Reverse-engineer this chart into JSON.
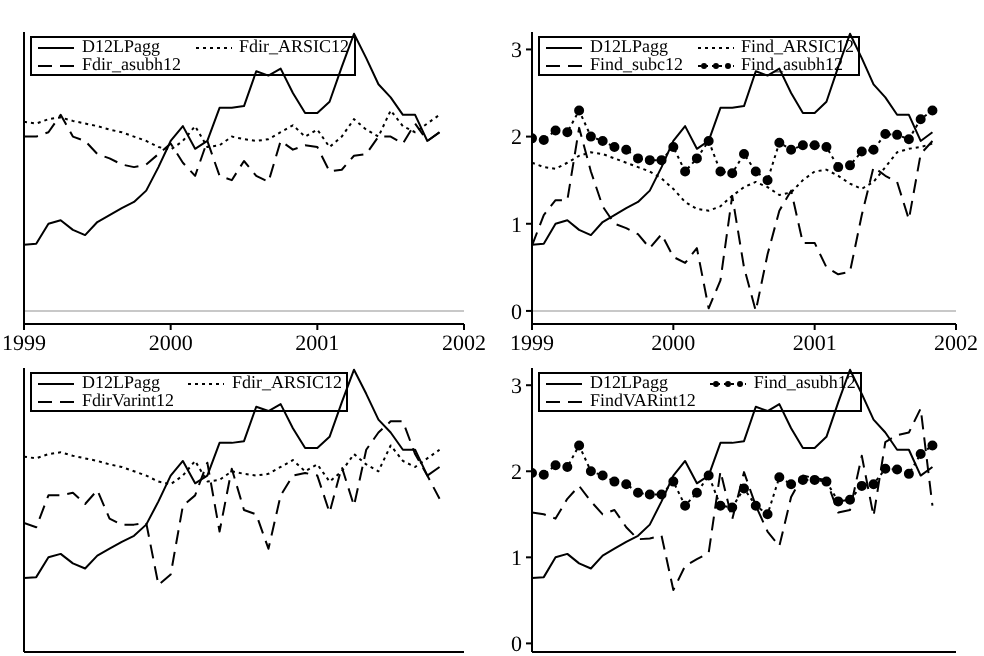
{
  "chart_data": [
    {
      "type": "line",
      "x": [
        "1999-01",
        "1999-02",
        "1999-03",
        "1999-04",
        "1999-05",
        "1999-06",
        "1999-07",
        "1999-08",
        "1999-09",
        "1999-10",
        "1999-11",
        "1999-12",
        "2000-01",
        "2000-02",
        "2000-03",
        "2000-04",
        "2000-05",
        "2000-06",
        "2000-07",
        "2000-08",
        "2000-09",
        "2000-10",
        "2000-11",
        "2000-12",
        "2001-01",
        "2001-02",
        "2001-03",
        "2001-04",
        "2001-05",
        "2001-06",
        "2001-07",
        "2001-08",
        "2001-09",
        "2001-10",
        "2001-11"
      ],
      "xlim": [
        "1999",
        "2002"
      ],
      "xticks": [
        "1999",
        "2000",
        "2001",
        "2002"
      ],
      "ylim": [
        -0.15,
        3.2
      ],
      "yticks": [
        0,
        1,
        2,
        3
      ],
      "tick_labels": "x",
      "legend": "top left",
      "ref_lines": [
        {
          "axis": "y",
          "value": 0,
          "color": "#c8c8c8"
        }
      ],
      "series": [
        {
          "name": "D12LPagg",
          "color": "#000000",
          "line_style": "solid",
          "marker": "none",
          "values": [
            0.76,
            0.77,
            1.0,
            1.04,
            0.93,
            0.87,
            1.02,
            1.1,
            1.18,
            1.25,
            1.38,
            1.65,
            1.95,
            2.12,
            1.86,
            1.95,
            2.33,
            2.33,
            2.35,
            2.75,
            2.7,
            2.78,
            2.5,
            2.27,
            2.27,
            2.4,
            2.8,
            3.18,
            2.9,
            2.6,
            2.45,
            2.25,
            2.25,
            1.95,
            2.05
          ]
        },
        {
          "name": "Fdir_ARSIC12",
          "color": "#000000",
          "line_style": "dotted",
          "marker": "none",
          "values": [
            2.17,
            2.15,
            2.2,
            2.22,
            2.18,
            2.15,
            2.12,
            2.08,
            2.05,
            2.0,
            1.95,
            1.88,
            1.85,
            1.95,
            2.12,
            1.88,
            1.9,
            2.0,
            1.97,
            1.95,
            1.97,
            2.05,
            2.13,
            2.0,
            2.08,
            1.88,
            2.0,
            2.2,
            2.08,
            2.0,
            2.3,
            2.12,
            2.05,
            2.15,
            2.25
          ]
        },
        {
          "name": "Fdir_asubh12",
          "color": "#000000",
          "line_style": "dashed",
          "marker": "none",
          "values": [
            2.0,
            2.0,
            2.05,
            2.25,
            2.0,
            1.95,
            1.8,
            1.75,
            1.68,
            1.65,
            1.68,
            1.8,
            1.92,
            1.7,
            1.55,
            1.95,
            1.55,
            1.5,
            1.72,
            1.55,
            1.48,
            1.95,
            1.85,
            1.9,
            1.88,
            1.6,
            1.62,
            1.78,
            1.8,
            2.0,
            2.0,
            1.92,
            2.15,
            1.95,
            2.05
          ]
        }
      ]
    },
    {
      "type": "line",
      "x": [
        "1999-01",
        "1999-02",
        "1999-03",
        "1999-04",
        "1999-05",
        "1999-06",
        "1999-07",
        "1999-08",
        "1999-09",
        "1999-10",
        "1999-11",
        "1999-12",
        "2000-01",
        "2000-02",
        "2000-03",
        "2000-04",
        "2000-05",
        "2000-06",
        "2000-07",
        "2000-08",
        "2000-09",
        "2000-10",
        "2000-11",
        "2000-12",
        "2001-01",
        "2001-02",
        "2001-03",
        "2001-04",
        "2001-05",
        "2001-06",
        "2001-07",
        "2001-08",
        "2001-09",
        "2001-10",
        "2001-11"
      ],
      "xlim": [
        "1999",
        "2002"
      ],
      "xticks": [
        "1999",
        "2000",
        "2001",
        "2002"
      ],
      "ylim": [
        -0.15,
        3.2
      ],
      "yticks": [
        0,
        1,
        2,
        3
      ],
      "legend": "top left",
      "ref_lines": [
        {
          "axis": "y",
          "value": 0,
          "color": "#c8c8c8"
        }
      ],
      "series": [
        {
          "name": "D12LPagg",
          "color": "#000000",
          "line_style": "solid",
          "marker": "none",
          "values": [
            0.76,
            0.77,
            1.0,
            1.04,
            0.93,
            0.87,
            1.02,
            1.1,
            1.18,
            1.25,
            1.38,
            1.65,
            1.95,
            2.12,
            1.86,
            1.95,
            2.33,
            2.33,
            2.35,
            2.75,
            2.7,
            2.78,
            2.5,
            2.27,
            2.27,
            2.4,
            2.8,
            3.18,
            2.9,
            2.6,
            2.45,
            2.25,
            2.25,
            1.95,
            2.05
          ]
        },
        {
          "name": "Find_ARSIC12",
          "color": "#000000",
          "line_style": "dotted",
          "marker": "none",
          "values": [
            1.7,
            1.65,
            1.63,
            1.7,
            1.78,
            1.82,
            1.8,
            1.75,
            1.7,
            1.65,
            1.6,
            1.52,
            1.4,
            1.25,
            1.17,
            1.15,
            1.2,
            1.32,
            1.42,
            1.48,
            1.42,
            1.33,
            1.36,
            1.5,
            1.6,
            1.62,
            1.55,
            1.46,
            1.4,
            1.48,
            1.65,
            1.82,
            1.86,
            1.88,
            1.92
          ]
        },
        {
          "name": "Find_subc12",
          "color": "#000000",
          "line_style": "dashed",
          "marker": "none",
          "values": [
            0.75,
            1.1,
            1.27,
            1.27,
            2.1,
            1.6,
            1.2,
            1.0,
            0.95,
            0.88,
            0.72,
            0.88,
            0.62,
            0.55,
            0.72,
            0.03,
            0.35,
            1.32,
            0.5,
            0.0,
            0.65,
            1.15,
            1.38,
            0.78,
            0.78,
            0.5,
            0.42,
            0.45,
            1.1,
            1.65,
            1.55,
            1.48,
            1.05,
            1.8,
            1.95
          ]
        },
        {
          "name": "Find_asubh12",
          "color": "#000000",
          "line_style": "dotted",
          "marker": "circle",
          "values": [
            1.98,
            1.96,
            2.07,
            2.05,
            2.3,
            2.0,
            1.95,
            1.88,
            1.85,
            1.75,
            1.73,
            1.73,
            1.88,
            1.6,
            1.75,
            1.95,
            1.6,
            1.58,
            1.8,
            1.6,
            1.5,
            1.93,
            1.85,
            1.9,
            1.9,
            1.88,
            1.65,
            1.67,
            1.83,
            1.85,
            2.03,
            2.02,
            1.97,
            2.2,
            2.3
          ]
        }
      ]
    },
    {
      "type": "line",
      "x": [
        "1999-01",
        "1999-02",
        "1999-03",
        "1999-04",
        "1999-05",
        "1999-06",
        "1999-07",
        "1999-08",
        "1999-09",
        "1999-10",
        "1999-11",
        "1999-12",
        "2000-01",
        "2000-02",
        "2000-03",
        "2000-04",
        "2000-05",
        "2000-06",
        "2000-07",
        "2000-08",
        "2000-09",
        "2000-10",
        "2000-11",
        "2000-12",
        "2001-01",
        "2001-02",
        "2001-03",
        "2001-04",
        "2001-05",
        "2001-06",
        "2001-07",
        "2001-08",
        "2001-09",
        "2001-10",
        "2001-11"
      ],
      "xlim": [
        "1999",
        "2002"
      ],
      "ylim": [
        -0.1,
        3.2
      ],
      "tick_labels": false,
      "legend": "top left",
      "series": [
        {
          "name": "D12LPagg",
          "color": "#000000",
          "line_style": "solid",
          "marker": "none",
          "values": [
            0.76,
            0.77,
            1.0,
            1.04,
            0.93,
            0.87,
            1.02,
            1.1,
            1.18,
            1.25,
            1.38,
            1.65,
            1.95,
            2.12,
            1.86,
            1.95,
            2.33,
            2.33,
            2.35,
            2.75,
            2.7,
            2.78,
            2.5,
            2.27,
            2.27,
            2.4,
            2.8,
            3.18,
            2.9,
            2.6,
            2.45,
            2.25,
            2.25,
            1.95,
            2.05
          ]
        },
        {
          "name": "Fdir_ARSIC12",
          "color": "#000000",
          "line_style": "dotted",
          "marker": "none",
          "values": [
            2.17,
            2.15,
            2.2,
            2.22,
            2.18,
            2.15,
            2.12,
            2.08,
            2.05,
            2.0,
            1.95,
            1.88,
            1.85,
            1.95,
            2.12,
            1.88,
            1.9,
            2.0,
            1.97,
            1.95,
            1.97,
            2.05,
            2.13,
            2.0,
            2.08,
            1.88,
            2.0,
            2.2,
            2.08,
            2.0,
            2.3,
            2.12,
            2.05,
            2.15,
            2.25
          ]
        },
        {
          "name": "FdirVarint12",
          "color": "#000000",
          "line_style": "dashed",
          "marker": "none",
          "values": [
            1.4,
            1.35,
            1.72,
            1.72,
            1.75,
            1.62,
            1.78,
            1.45,
            1.38,
            1.38,
            1.4,
            0.68,
            0.8,
            1.6,
            1.72,
            2.1,
            1.3,
            2.03,
            1.55,
            1.5,
            1.1,
            1.72,
            1.95,
            1.98,
            1.95,
            1.52,
            2.05,
            1.6,
            2.25,
            2.45,
            2.58,
            2.58,
            2.2,
            1.95,
            1.68
          ]
        }
      ]
    },
    {
      "type": "line",
      "x": [
        "1999-01",
        "1999-02",
        "1999-03",
        "1999-04",
        "1999-05",
        "1999-06",
        "1999-07",
        "1999-08",
        "1999-09",
        "1999-10",
        "1999-11",
        "1999-12",
        "2000-01",
        "2000-02",
        "2000-03",
        "2000-04",
        "2000-05",
        "2000-06",
        "2000-07",
        "2000-08",
        "2000-09",
        "2000-10",
        "2000-11",
        "2000-12",
        "2001-01",
        "2001-02",
        "2001-03",
        "2001-04",
        "2001-05",
        "2001-06",
        "2001-07",
        "2001-08",
        "2001-09",
        "2001-10",
        "2001-11"
      ],
      "xlim": [
        "1999",
        "2002"
      ],
      "ylim": [
        -0.1,
        3.2
      ],
      "yticks": [
        0,
        1,
        2,
        3
      ],
      "tick_labels": "y",
      "legend": "top left",
      "series": [
        {
          "name": "D12LPagg",
          "color": "#000000",
          "line_style": "solid",
          "marker": "none",
          "values": [
            0.76,
            0.77,
            1.0,
            1.04,
            0.93,
            0.87,
            1.02,
            1.1,
            1.18,
            1.25,
            1.38,
            1.65,
            1.95,
            2.12,
            1.86,
            1.95,
            2.33,
            2.33,
            2.35,
            2.75,
            2.7,
            2.78,
            2.5,
            2.27,
            2.27,
            2.4,
            2.8,
            3.18,
            2.9,
            2.6,
            2.45,
            2.25,
            2.25,
            1.95,
            2.05
          ]
        },
        {
          "name": "Find_asubh12",
          "color": "#000000",
          "line_style": "dotted",
          "marker": "circle",
          "values": [
            1.98,
            1.96,
            2.07,
            2.05,
            2.3,
            2.0,
            1.95,
            1.88,
            1.85,
            1.75,
            1.73,
            1.73,
            1.88,
            1.6,
            1.75,
            1.95,
            1.6,
            1.58,
            1.8,
            1.6,
            1.5,
            1.93,
            1.85,
            1.9,
            1.9,
            1.88,
            1.65,
            1.67,
            1.83,
            1.85,
            2.03,
            2.02,
            1.97,
            2.2,
            2.3
          ]
        },
        {
          "name": "FindVARint12",
          "color": "#000000",
          "line_style": "dashed",
          "marker": "none",
          "values": [
            1.52,
            1.5,
            1.45,
            1.68,
            1.83,
            1.65,
            1.5,
            1.55,
            1.35,
            1.21,
            1.22,
            1.25,
            0.62,
            0.9,
            0.98,
            1.05,
            2.0,
            1.44,
            1.99,
            1.6,
            1.3,
            1.13,
            1.7,
            1.95,
            1.92,
            1.9,
            1.52,
            1.55,
            2.18,
            1.48,
            2.34,
            2.42,
            2.45,
            2.73,
            1.6
          ]
        }
      ]
    }
  ]
}
